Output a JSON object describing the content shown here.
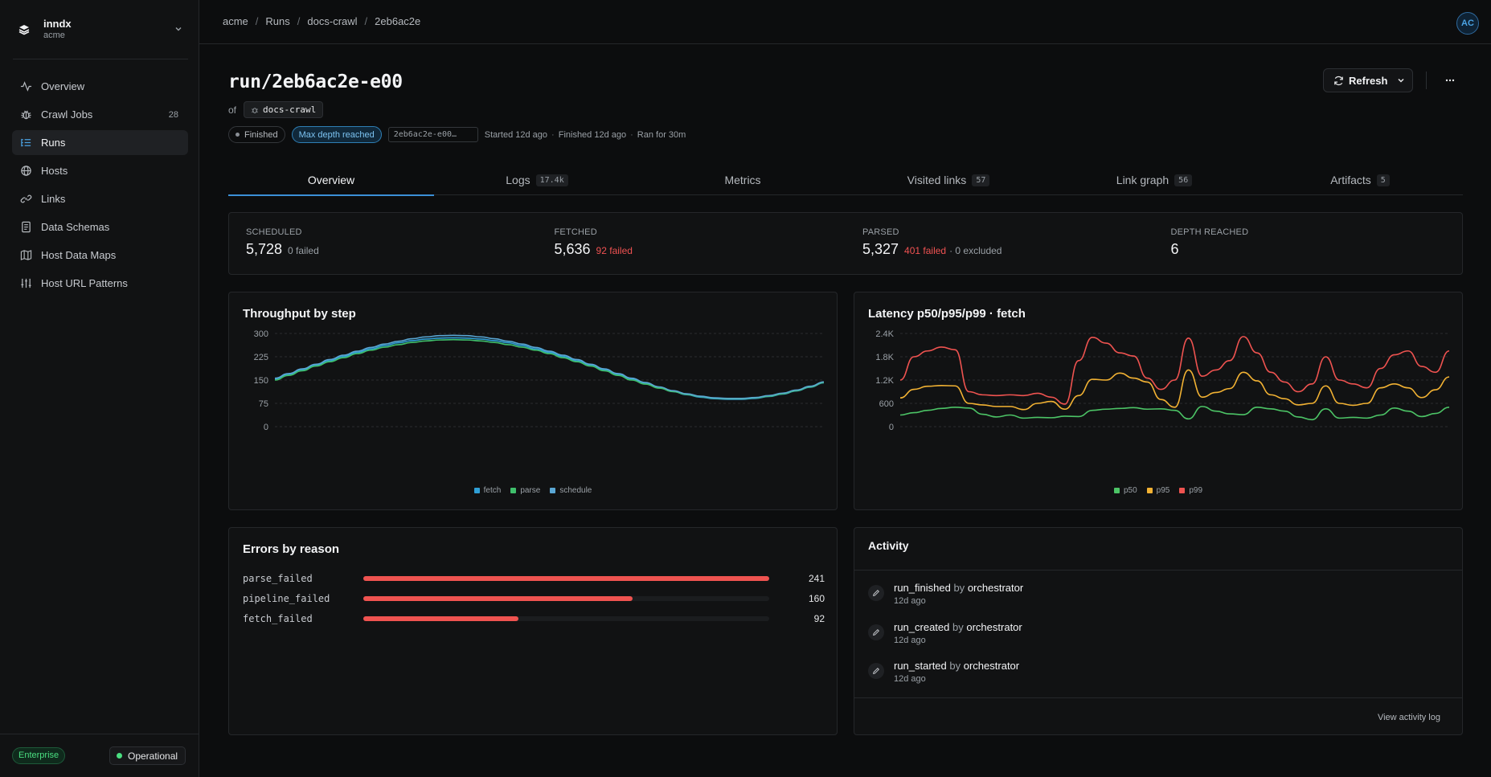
{
  "brand": {
    "name": "inndx",
    "org": "acme"
  },
  "nav": [
    {
      "label": "Overview",
      "icon": "activity-icon",
      "count": ""
    },
    {
      "label": "Crawl Jobs",
      "icon": "bug-icon",
      "count": "28"
    },
    {
      "label": "Runs",
      "icon": "list-icon",
      "count": "",
      "active": true
    },
    {
      "label": "Hosts",
      "icon": "globe-icon",
      "count": ""
    },
    {
      "label": "Links",
      "icon": "link-icon",
      "count": ""
    },
    {
      "label": "Data Schemas",
      "icon": "book-icon",
      "count": ""
    },
    {
      "label": "Host Data Maps",
      "icon": "map-icon",
      "count": ""
    },
    {
      "label": "Host URL Patterns",
      "icon": "sliders-icon",
      "count": ""
    }
  ],
  "footer": {
    "plan": "Enterprise",
    "status": "Operational"
  },
  "breadcrumb": [
    "acme",
    "Runs",
    "docs-crawl",
    "2eb6ac2e"
  ],
  "user": {
    "initials": "AC"
  },
  "run": {
    "title": "run/2eb6ac2e-e00",
    "of_label": "of",
    "job": "docs-crawl",
    "status": "Finished",
    "reason": "Max depth reached",
    "id": "2eb6ac2e-e00…",
    "started": "Started 12d ago",
    "finished": "Finished 12d ago",
    "duration": "Ran for 30m"
  },
  "actions": {
    "refresh": "Refresh"
  },
  "tabs": [
    {
      "label": "Overview",
      "count": "",
      "active": true
    },
    {
      "label": "Logs",
      "count": "17.4k"
    },
    {
      "label": "Metrics",
      "count": ""
    },
    {
      "label": "Visited links",
      "count": "57"
    },
    {
      "label": "Link graph",
      "count": "56"
    },
    {
      "label": "Artifacts",
      "count": "5"
    }
  ],
  "stats": [
    {
      "label": "SCHEDULED",
      "value": "5,728",
      "note": "0 failed",
      "note_red": ""
    },
    {
      "label": "FETCHED",
      "value": "5,636",
      "note": "",
      "note_red": "92 failed"
    },
    {
      "label": "PARSED",
      "value": "5,327",
      "note": "· 0 excluded",
      "note_red": "401 failed"
    },
    {
      "label": "DEPTH REACHED",
      "value": "6",
      "note": "",
      "note_red": ""
    }
  ],
  "colors": {
    "accent": "#3b8fd6",
    "fetch": "#2f9fd6",
    "parse": "#3fbf6b",
    "schedule": "#5aa7d4",
    "p50": "#4cc466",
    "p95": "#f2b233",
    "p99": "#ef5350",
    "error": "#ef5350"
  },
  "chart_data": [
    {
      "type": "line",
      "title": "Throughput by step",
      "ylim": [
        0,
        300
      ],
      "yticks": [
        "300",
        "225",
        "150",
        "75",
        "0"
      ],
      "x": [
        0,
        1,
        2,
        3,
        4,
        5,
        6,
        7,
        8,
        9,
        10,
        11,
        12,
        13,
        14,
        15,
        16,
        17,
        18,
        19,
        20,
        21,
        22,
        23,
        24,
        25,
        26,
        27,
        28,
        29,
        30,
        31,
        32,
        33,
        34,
        35,
        36,
        37,
        38,
        39,
        40
      ],
      "series": [
        {
          "name": "fetch",
          "values": [
            153,
            168,
            183,
            198,
            212,
            226,
            239,
            250,
            261,
            270,
            277,
            282,
            285,
            286,
            285,
            282,
            277,
            270,
            261,
            250,
            239,
            226,
            212,
            198,
            183,
            168,
            153,
            139,
            125,
            113,
            103,
            95,
            90,
            88,
            88,
            91,
            97,
            105,
            115,
            127,
            141
          ]
        },
        {
          "name": "parse",
          "values": [
            150,
            165,
            180,
            195,
            209,
            222,
            235,
            246,
            256,
            264,
            271,
            276,
            279,
            280,
            279,
            276,
            271,
            264,
            256,
            246,
            235,
            222,
            209,
            195,
            180,
            165,
            150,
            137,
            124,
            113,
            104,
            97,
            92,
            90,
            90,
            93,
            98,
            106,
            116,
            128,
            142
          ]
        },
        {
          "name": "schedule",
          "values": [
            156,
            171,
            186,
            201,
            216,
            230,
            243,
            255,
            266,
            275,
            283,
            289,
            293,
            294,
            293,
            289,
            283,
            275,
            266,
            255,
            243,
            230,
            216,
            201,
            186,
            171,
            156,
            142,
            128,
            116,
            106,
            98,
            93,
            91,
            91,
            94,
            100,
            108,
            118,
            130,
            144
          ]
        }
      ],
      "legend": "bottom-center"
    },
    {
      "type": "line",
      "title": "Latency p50/p95/p99 · fetch",
      "ylim": [
        0,
        2400
      ],
      "yticks": [
        "2.4K",
        "1.8K",
        "1.2K",
        "600",
        "0"
      ],
      "x": [
        0,
        1,
        2,
        3,
        4,
        5,
        6,
        7,
        8,
        9,
        10,
        11,
        12,
        13,
        14,
        15,
        16,
        17,
        18,
        19,
        20,
        21,
        22,
        23,
        24,
        25,
        26,
        27,
        28,
        29,
        30,
        31,
        32,
        33,
        34,
        35,
        36,
        37,
        38,
        39,
        40
      ],
      "series": [
        {
          "name": "p50",
          "values": [
            300,
            360,
            420,
            470,
            500,
            480,
            320,
            250,
            300,
            220,
            240,
            230,
            270,
            260,
            420,
            450,
            470,
            490,
            450,
            460,
            420,
            200,
            520,
            400,
            330,
            310,
            500,
            460,
            400,
            250,
            180,
            460,
            220,
            240,
            220,
            300,
            480,
            400,
            260,
            340,
            500
          ]
        },
        {
          "name": "p95",
          "values": [
            740,
            960,
            1040,
            1060,
            1050,
            600,
            560,
            520,
            520,
            440,
            600,
            650,
            450,
            800,
            1220,
            1200,
            1380,
            1250,
            1150,
            700,
            500,
            1460,
            760,
            880,
            980,
            1400,
            1180,
            820,
            720,
            560,
            600,
            1050,
            600,
            550,
            600,
            1000,
            1100,
            1000,
            750,
            950,
            1280
          ]
        },
        {
          "name": "p99",
          "values": [
            1200,
            1800,
            1950,
            2050,
            1980,
            900,
            820,
            800,
            820,
            800,
            860,
            760,
            580,
            1700,
            2300,
            2150,
            1900,
            1820,
            1250,
            960,
            1200,
            2280,
            1300,
            1460,
            1700,
            2320,
            1900,
            1400,
            1150,
            900,
            1100,
            1800,
            1200,
            1100,
            1000,
            1500,
            1850,
            1950,
            1550,
            1400,
            1950
          ]
        }
      ],
      "legend": "bottom-center"
    },
    {
      "type": "bar",
      "title": "Errors by reason",
      "categories": [
        "parse_failed",
        "pipeline_failed",
        "fetch_failed"
      ],
      "values": [
        241,
        160,
        92
      ],
      "xlim": [
        0,
        241
      ]
    }
  ],
  "activity": {
    "title": "Activity",
    "by": "by",
    "items": [
      {
        "event": "run_finished",
        "actor": "orchestrator",
        "time": "12d ago"
      },
      {
        "event": "run_created",
        "actor": "orchestrator",
        "time": "12d ago"
      },
      {
        "event": "run_started",
        "actor": "orchestrator",
        "time": "12d ago"
      }
    ],
    "view_log": "View activity log"
  }
}
